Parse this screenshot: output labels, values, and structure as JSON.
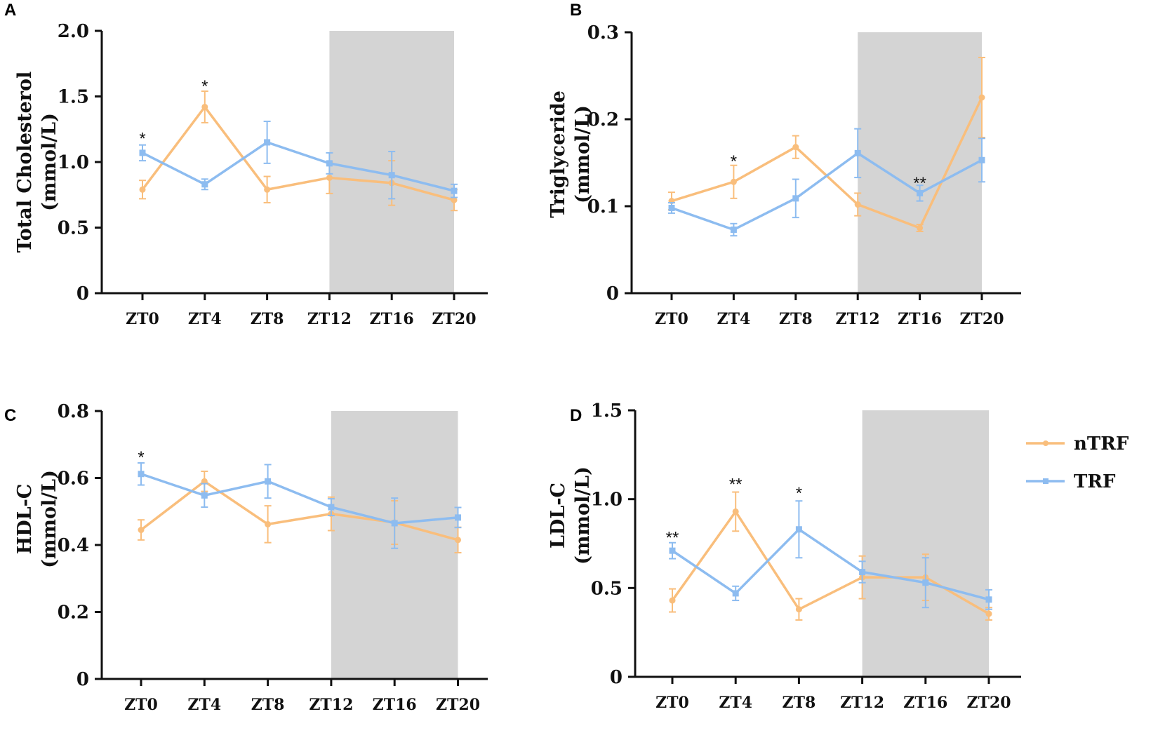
{
  "legend": {
    "entries": [
      {
        "label": "nTRF",
        "color": "#F9BE7C"
      },
      {
        "label": "TRF",
        "color": "#8DBCF0"
      }
    ]
  },
  "colors": {
    "nTRF": "#F9BE7C",
    "TRF": "#8DBCF0",
    "dark_phase": "#D4D4D4",
    "axis": "#111111"
  },
  "chart_data": [
    {
      "panel": "A",
      "type": "line",
      "ylabel": [
        "Total Cholesterol",
        "(mmol/L)"
      ],
      "categories": [
        "ZT0",
        "ZT4",
        "ZT8",
        "ZT12",
        "ZT16",
        "ZT20"
      ],
      "ylim": [
        0,
        2.0
      ],
      "yticks": [
        0,
        0.5,
        1.0,
        1.5,
        2.0
      ],
      "ytick_labels": [
        "0",
        "0.5",
        "1.0",
        "1.5",
        "2.0"
      ],
      "dark_phase": [
        "ZT12",
        "ZT20"
      ],
      "series": [
        {
          "name": "nTRF",
          "values": [
            0.79,
            1.42,
            0.79,
            0.88,
            0.84,
            0.71
          ],
          "errors": [
            0.07,
            0.12,
            0.1,
            0.12,
            0.17,
            0.08
          ]
        },
        {
          "name": "TRF",
          "values": [
            1.07,
            0.83,
            1.15,
            0.99,
            0.9,
            0.78
          ],
          "errors": [
            0.06,
            0.04,
            0.16,
            0.08,
            0.18,
            0.05
          ]
        }
      ],
      "annotations": [
        {
          "category": "ZT0",
          "text": "*",
          "y": 1.2
        },
        {
          "category": "ZT4",
          "text": "*",
          "y": 1.6
        }
      ]
    },
    {
      "panel": "B",
      "type": "line",
      "ylabel": [
        "Triglyceride",
        "(mmol/L)"
      ],
      "categories": [
        "ZT0",
        "ZT4",
        "ZT8",
        "ZT12",
        "ZT16",
        "ZT20"
      ],
      "ylim": [
        0,
        0.3
      ],
      "yticks": [
        0,
        0.1,
        0.2,
        0.3
      ],
      "ytick_labels": [
        "0",
        "0.1",
        "0.2",
        "0.3"
      ],
      "dark_phase": [
        "ZT12",
        "ZT20"
      ],
      "series": [
        {
          "name": "nTRF",
          "values": [
            0.106,
            0.128,
            0.168,
            0.102,
            0.075,
            0.225
          ],
          "errors": [
            0.01,
            0.019,
            0.013,
            0.013,
            0.004,
            0.046
          ]
        },
        {
          "name": "TRF",
          "values": [
            0.098,
            0.073,
            0.109,
            0.161,
            0.115,
            0.153
          ],
          "errors": [
            0.006,
            0.007,
            0.022,
            0.028,
            0.009,
            0.025
          ]
        }
      ],
      "annotations": [
        {
          "category": "ZT4",
          "text": "*",
          "y": 0.155
        },
        {
          "category": "ZT16",
          "text": "**",
          "y": 0.13
        }
      ]
    },
    {
      "panel": "C",
      "type": "line",
      "ylabel": [
        "HDL-C",
        "(mmol/L)"
      ],
      "categories": [
        "ZT0",
        "ZT4",
        "ZT8",
        "ZT12",
        "ZT16",
        "ZT20"
      ],
      "ylim": [
        0,
        0.8
      ],
      "yticks": [
        0,
        0.2,
        0.4,
        0.6,
        0.8
      ],
      "ytick_labels": [
        "0",
        "0.2",
        "0.4",
        "0.6",
        "0.8"
      ],
      "dark_phase": [
        "ZT12",
        "ZT20"
      ],
      "series": [
        {
          "name": "nTRF",
          "values": [
            0.445,
            0.59,
            0.462,
            0.493,
            0.467,
            0.415
          ],
          "errors": [
            0.03,
            0.03,
            0.055,
            0.05,
            0.065,
            0.038
          ]
        },
        {
          "name": "TRF",
          "values": [
            0.612,
            0.548,
            0.59,
            0.513,
            0.465,
            0.482
          ],
          "errors": [
            0.033,
            0.035,
            0.05,
            0.025,
            0.075,
            0.03
          ]
        }
      ],
      "annotations": [
        {
          "category": "ZT0",
          "text": "*",
          "y": 0.67
        }
      ]
    },
    {
      "panel": "D",
      "type": "line",
      "ylabel": [
        "LDL-C",
        "(mmol/L)"
      ],
      "categories": [
        "ZT0",
        "ZT4",
        "ZT8",
        "ZT12",
        "ZT16",
        "ZT20"
      ],
      "ylim": [
        0,
        1.5
      ],
      "yticks": [
        0,
        0.5,
        1.0,
        1.5
      ],
      "ytick_labels": [
        "0",
        "0.5",
        "1.0",
        "1.5"
      ],
      "dark_phase": [
        "ZT12",
        "ZT20"
      ],
      "series": [
        {
          "name": "nTRF",
          "values": [
            0.43,
            0.93,
            0.38,
            0.56,
            0.56,
            0.355
          ],
          "errors": [
            0.065,
            0.11,
            0.06,
            0.12,
            0.13,
            0.035
          ]
        },
        {
          "name": "TRF",
          "values": [
            0.71,
            0.47,
            0.83,
            0.59,
            0.53,
            0.435
          ],
          "errors": [
            0.045,
            0.04,
            0.16,
            0.06,
            0.14,
            0.055
          ]
        }
      ],
      "annotations": [
        {
          "category": "ZT0",
          "text": "**",
          "y": 0.8
        },
        {
          "category": "ZT4",
          "text": "**",
          "y": 1.1
        },
        {
          "category": "ZT8",
          "text": "*",
          "y": 1.05
        }
      ]
    }
  ]
}
